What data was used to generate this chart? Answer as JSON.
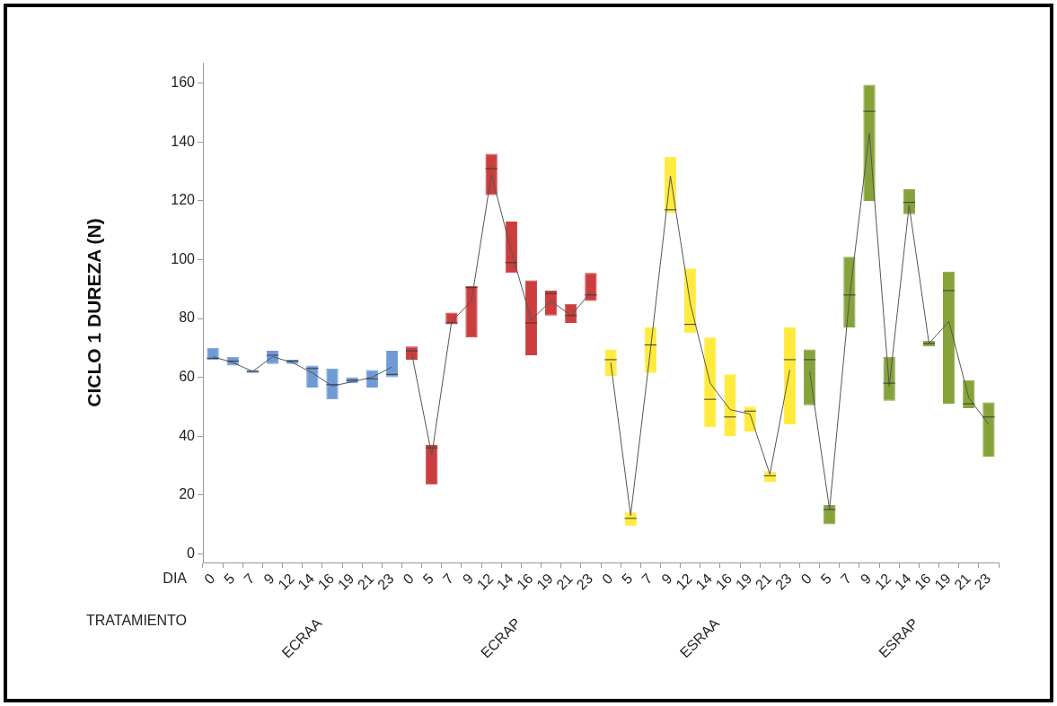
{
  "chart_data": {
    "type": "box",
    "ylabel": "CICLO 1 DUREZA (N)",
    "annotations": [
      "DIA",
      "TRATAMIENTO",
      "ECRAA",
      "ECRAP",
      "ESRAA",
      "ESRAP"
    ],
    "categories": [
      "0",
      "5",
      "7",
      "9",
      "12",
      "14",
      "16",
      "19",
      "21",
      "23",
      "0",
      "5",
      "7",
      "9",
      "12",
      "14",
      "16",
      "19",
      "21",
      "23",
      "0",
      "5",
      "7",
      "9",
      "12",
      "14",
      "16",
      "19",
      "21",
      "23",
      "0",
      "5",
      "7",
      "9",
      "12",
      "14",
      "16",
      "19",
      "21",
      "23"
    ],
    "ylim": [
      -3,
      167
    ],
    "yticks": [
      0,
      20,
      40,
      60,
      80,
      100,
      120,
      140,
      160
    ],
    "series": [
      {
        "color": "#6f9bd4",
        "boxes": [
          {
            "low": 66,
            "q1": 66,
            "median": 66.5,
            "q3": 70,
            "high": 70
          },
          {
            "low": 64,
            "q1": 64,
            "median": 65.5,
            "q3": 67,
            "high": 67
          },
          {
            "low": 61.5,
            "q1": 61.5,
            "median": 62,
            "q3": 62.5,
            "high": 62.5
          },
          {
            "low": 64.5,
            "q1": 64.5,
            "median": 67.5,
            "q3": 69,
            "high": 69
          },
          {
            "low": 64.5,
            "q1": 64.5,
            "median": 65.5,
            "q3": 66,
            "high": 66
          },
          {
            "low": 56.5,
            "q1": 56.5,
            "median": 63,
            "q3": 64,
            "high": 64
          },
          {
            "low": 52.5,
            "q1": 52.5,
            "median": 57.5,
            "q3": 63,
            "high": 63
          },
          {
            "low": 58,
            "q1": 58,
            "median": 59,
            "q3": 60,
            "high": 60
          },
          {
            "low": 56.5,
            "q1": 56.5,
            "median": 59.5,
            "q3": 62.5,
            "high": 62.5
          },
          {
            "low": 60,
            "q1": 60,
            "median": 61,
            "q3": 69,
            "high": 69
          },
          null,
          null,
          null,
          null,
          null,
          null,
          null,
          null,
          null,
          null,
          null,
          null,
          null,
          null,
          null,
          null,
          null,
          null,
          null,
          null,
          null,
          null,
          null,
          null,
          null,
          null,
          null,
          null,
          null,
          null
        ]
      },
      {
        "color": "#cc3d3d",
        "boxes": [
          null,
          null,
          null,
          null,
          null,
          null,
          null,
          null,
          null,
          null,
          {
            "low": 66,
            "q1": 66,
            "median": 69,
            "q3": 70.5,
            "high": 70.5
          },
          {
            "low": 23.5,
            "q1": 23.5,
            "median": 36,
            "q3": 37,
            "high": 37
          },
          {
            "low": 78,
            "q1": 78,
            "median": 78.5,
            "q3": 82,
            "high": 82
          },
          {
            "low": 73.5,
            "q1": 73.5,
            "median": 90.5,
            "q3": 91,
            "high": 91
          },
          {
            "low": 122,
            "q1": 122,
            "median": 131,
            "q3": 136,
            "high": 136
          },
          {
            "low": 95.5,
            "q1": 95.5,
            "median": 99,
            "q3": 113,
            "high": 113
          },
          {
            "low": 67.5,
            "q1": 67.5,
            "median": 78.5,
            "q3": 93,
            "high": 93
          },
          {
            "low": 81,
            "q1": 81,
            "median": 88.5,
            "q3": 89.5,
            "high": 89.5
          },
          {
            "low": 78.5,
            "q1": 78.5,
            "median": 81,
            "q3": 85,
            "high": 85
          },
          {
            "low": 86,
            "q1": 86,
            "median": 88,
            "q3": 95.5,
            "high": 95.5
          },
          null,
          null,
          null,
          null,
          null,
          null,
          null,
          null,
          null,
          null,
          null,
          null,
          null,
          null,
          null,
          null,
          null,
          null,
          null,
          null
        ]
      },
      {
        "color": "#ffea3d",
        "boxes": [
          null,
          null,
          null,
          null,
          null,
          null,
          null,
          null,
          null,
          null,
          null,
          null,
          null,
          null,
          null,
          null,
          null,
          null,
          null,
          null,
          {
            "low": 60.5,
            "q1": 60.5,
            "median": 66,
            "q3": 69.5,
            "high": 69.5
          },
          {
            "low": 9.5,
            "q1": 9.5,
            "median": 12,
            "q3": 14,
            "high": 14
          },
          {
            "low": 61.5,
            "q1": 61.5,
            "median": 71,
            "q3": 77,
            "high": 77
          },
          {
            "low": 116,
            "q1": 116,
            "median": 117,
            "q3": 135,
            "high": 135
          },
          {
            "low": 75,
            "q1": 75,
            "median": 78,
            "q3": 97,
            "high": 97
          },
          {
            "low": 43,
            "q1": 43,
            "median": 52.5,
            "q3": 73.5,
            "high": 73.5
          },
          {
            "low": 40,
            "q1": 40,
            "median": 46.5,
            "q3": 61,
            "high": 61
          },
          {
            "low": 41.5,
            "q1": 41.5,
            "median": 48.5,
            "q3": 50,
            "high": 50
          },
          {
            "low": 24.5,
            "q1": 24.5,
            "median": 26.5,
            "q3": 28,
            "high": 28
          },
          {
            "low": 44,
            "q1": 44,
            "median": 66,
            "q3": 77,
            "high": 77
          },
          null,
          null,
          null,
          null,
          null,
          null,
          null,
          null,
          null,
          null
        ]
      },
      {
        "color": "#86a33a",
        "boxes": [
          null,
          null,
          null,
          null,
          null,
          null,
          null,
          null,
          null,
          null,
          null,
          null,
          null,
          null,
          null,
          null,
          null,
          null,
          null,
          null,
          null,
          null,
          null,
          null,
          null,
          null,
          null,
          null,
          null,
          null,
          {
            "low": 50.5,
            "q1": 50.5,
            "median": 66,
            "q3": 69.5,
            "high": 69.5
          },
          {
            "low": 10,
            "q1": 10,
            "median": 15,
            "q3": 16.5,
            "high": 16.5
          },
          {
            "low": 77,
            "q1": 77,
            "median": 88,
            "q3": 101,
            "high": 101
          },
          {
            "low": 120,
            "q1": 120,
            "median": 150.5,
            "q3": 159.5,
            "high": 159.5
          },
          {
            "low": 52,
            "q1": 52,
            "median": 58,
            "q3": 67,
            "high": 67
          },
          {
            "low": 115.5,
            "q1": 115.5,
            "median": 119.5,
            "q3": 124,
            "high": 124
          },
          {
            "low": 70.5,
            "q1": 70.5,
            "median": 71.5,
            "q3": 72.5,
            "high": 72.5
          },
          {
            "low": 51,
            "q1": 51,
            "median": 89.5,
            "q3": 96,
            "high": 96
          },
          {
            "low": 49.5,
            "q1": 49.5,
            "median": 51,
            "q3": 59,
            "high": 59
          },
          {
            "low": 33,
            "q1": 33,
            "median": 46.5,
            "q3": 51.5,
            "high": 51.5
          }
        ]
      },
      {
        "type": "line",
        "color": "#555555",
        "values": [
          67,
          65,
          62,
          67,
          65,
          61.5,
          57,
          58.5,
          60,
          63.5,
          null,
          null,
          null,
          null,
          null,
          null,
          null,
          null,
          null,
          null,
          null,
          null,
          null,
          null,
          null,
          null,
          null,
          null,
          null,
          null,
          null,
          null,
          null,
          null,
          null,
          null,
          null,
          null,
          null,
          null
        ]
      },
      {
        "type": "line",
        "color": "#555555",
        "values": [
          null,
          null,
          null,
          null,
          null,
          null,
          null,
          null,
          null,
          null,
          68,
          33.5,
          79,
          86,
          129,
          103,
          79.5,
          86,
          81,
          89,
          null,
          null,
          null,
          null,
          null,
          null,
          null,
          null,
          null,
          null,
          null,
          null,
          null,
          null,
          null,
          null,
          null,
          null,
          null,
          null
        ]
      },
      {
        "type": "line",
        "color": "#555555",
        "values": [
          null,
          null,
          null,
          null,
          null,
          null,
          null,
          null,
          null,
          null,
          null,
          null,
          null,
          null,
          null,
          null,
          null,
          null,
          null,
          null,
          65,
          13,
          69.5,
          128.5,
          85,
          58,
          49,
          47.5,
          27,
          62.5,
          null,
          null,
          null,
          null,
          null,
          null,
          null,
          null,
          null,
          null
        ]
      },
      {
        "type": "line",
        "color": "#555555",
        "values": [
          null,
          null,
          null,
          null,
          null,
          null,
          null,
          null,
          null,
          null,
          null,
          null,
          null,
          null,
          null,
          null,
          null,
          null,
          null,
          null,
          null,
          null,
          null,
          null,
          null,
          null,
          null,
          null,
          null,
          null,
          62,
          15,
          87,
          143,
          57,
          118.5,
          71.5,
          79,
          53,
          44
        ]
      }
    ]
  }
}
